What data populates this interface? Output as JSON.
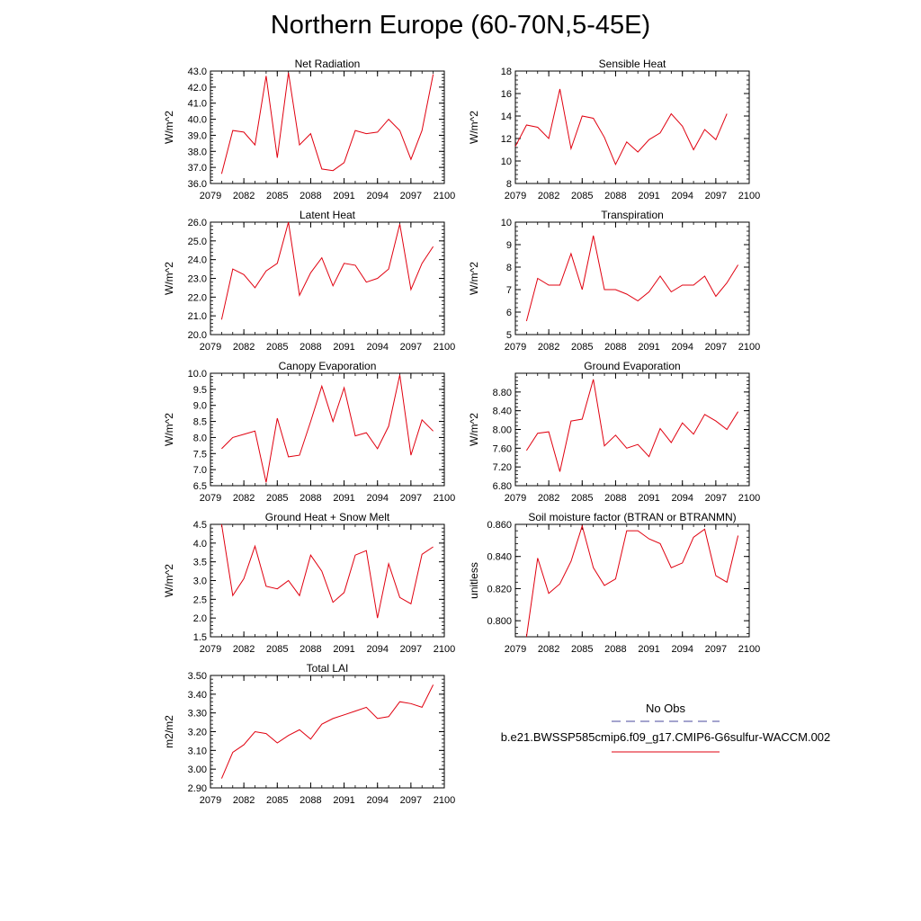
{
  "title": "Northern Europe (60-70N,5-45E)",
  "colors": {
    "series": "#e0000f",
    "obs": "#4a4a9c",
    "axis": "#000000"
  },
  "legend": {
    "obs_label": "No Obs",
    "case_label": "b.e21.BWSSP585cmip6.f09_g17.CMIP6-G6sulfur-WACCM.002"
  },
  "chart_data": [
    {
      "type": "line",
      "title": "Net Radiation",
      "ylabel": "W/m^2",
      "xlim": [
        2079,
        2100
      ],
      "ylim": [
        36.0,
        43.0
      ],
      "yticks": [
        36.0,
        37.0,
        38.0,
        39.0,
        40.0,
        41.0,
        42.0,
        43.0
      ],
      "ytick_labels": [
        "36.0",
        "37.0",
        "38.0",
        "39.0",
        "40.0",
        "41.0",
        "42.0",
        "43.0"
      ],
      "xticks": [
        2079,
        2082,
        2085,
        2088,
        2091,
        2094,
        2097,
        2100
      ],
      "x": [
        2080,
        2081,
        2082,
        2083,
        2084,
        2085,
        2086,
        2087,
        2088,
        2089,
        2090,
        2091,
        2092,
        2093,
        2094,
        2095,
        2096,
        2097,
        2098,
        2099
      ],
      "values": [
        36.6,
        39.3,
        39.2,
        38.4,
        42.7,
        37.6,
        42.9,
        38.4,
        39.1,
        36.9,
        36.8,
        37.3,
        39.3,
        39.1,
        39.2,
        40.0,
        39.3,
        37.5,
        39.3,
        42.8
      ]
    },
    {
      "type": "line",
      "title": "Sensible Heat",
      "ylabel": "W/m^2",
      "xlim": [
        2079,
        2100
      ],
      "ylim": [
        8,
        18
      ],
      "yticks": [
        8,
        10,
        12,
        14,
        16,
        18
      ],
      "ytick_labels": [
        "8",
        "10",
        "12",
        "14",
        "16",
        "18"
      ],
      "xticks": [
        2079,
        2082,
        2085,
        2088,
        2091,
        2094,
        2097,
        2100
      ],
      "x": [
        2079,
        2080,
        2081,
        2082,
        2083,
        2084,
        2085,
        2086,
        2087,
        2088,
        2089,
        2090,
        2091,
        2092,
        2093,
        2094,
        2095,
        2096,
        2097,
        2098
      ],
      "values": [
        11.3,
        13.2,
        13.0,
        12.0,
        16.4,
        11.1,
        14.0,
        13.8,
        12.1,
        9.7,
        11.7,
        10.8,
        11.9,
        12.5,
        14.2,
        13.1,
        11.0,
        12.8,
        11.9,
        14.2
      ]
    },
    {
      "type": "line",
      "title": "Latent Heat",
      "ylabel": "W/m^2",
      "xlim": [
        2079,
        2100
      ],
      "ylim": [
        20.0,
        26.0
      ],
      "yticks": [
        20.0,
        21.0,
        22.0,
        23.0,
        24.0,
        25.0,
        26.0
      ],
      "ytick_labels": [
        "20.0",
        "21.0",
        "22.0",
        "23.0",
        "24.0",
        "25.0",
        "26.0"
      ],
      "xticks": [
        2079,
        2082,
        2085,
        2088,
        2091,
        2094,
        2097,
        2100
      ],
      "x": [
        2080,
        2081,
        2082,
        2083,
        2084,
        2085,
        2086,
        2087,
        2088,
        2089,
        2090,
        2091,
        2092,
        2093,
        2094,
        2095,
        2096,
        2097,
        2098,
        2099
      ],
      "values": [
        20.8,
        23.5,
        23.2,
        22.5,
        23.4,
        23.8,
        26.0,
        22.1,
        23.3,
        24.1,
        22.6,
        23.8,
        23.7,
        22.8,
        23.0,
        23.5,
        25.9,
        22.4,
        23.8,
        24.7
      ]
    },
    {
      "type": "line",
      "title": "Transpiration",
      "ylabel": "W/m^2",
      "xlim": [
        2079,
        2100
      ],
      "ylim": [
        5,
        10
      ],
      "yticks": [
        5,
        6,
        7,
        8,
        9,
        10
      ],
      "ytick_labels": [
        "5",
        "6",
        "7",
        "8",
        "9",
        "10"
      ],
      "xticks": [
        2079,
        2082,
        2085,
        2088,
        2091,
        2094,
        2097,
        2100
      ],
      "x": [
        2080,
        2081,
        2082,
        2083,
        2084,
        2085,
        2086,
        2087,
        2088,
        2089,
        2090,
        2091,
        2092,
        2093,
        2094,
        2095,
        2096,
        2097,
        2098,
        2099
      ],
      "values": [
        5.6,
        7.5,
        7.2,
        7.2,
        8.6,
        7.0,
        9.4,
        7.0,
        7.0,
        6.8,
        6.5,
        6.9,
        7.6,
        6.9,
        7.2,
        7.2,
        7.6,
        6.7,
        7.3,
        8.1
      ]
    },
    {
      "type": "line",
      "title": "Canopy Evaporation",
      "ylabel": "W/m^2",
      "xlim": [
        2079,
        2100
      ],
      "ylim": [
        6.5,
        10.0
      ],
      "yticks": [
        6.5,
        7.0,
        7.5,
        8.0,
        8.5,
        9.0,
        9.5,
        10.0
      ],
      "ytick_labels": [
        "6.5",
        "7.0",
        "7.5",
        "8.0",
        "8.5",
        "9.0",
        "9.5",
        "10.0"
      ],
      "xticks": [
        2079,
        2082,
        2085,
        2088,
        2091,
        2094,
        2097,
        2100
      ],
      "x": [
        2080,
        2081,
        2082,
        2083,
        2084,
        2085,
        2086,
        2087,
        2088,
        2089,
        2090,
        2091,
        2092,
        2093,
        2094,
        2095,
        2096,
        2097,
        2098,
        2099
      ],
      "values": [
        7.65,
        8.0,
        8.1,
        8.2,
        6.6,
        8.6,
        7.4,
        7.45,
        8.5,
        9.6,
        8.5,
        9.55,
        8.05,
        8.15,
        7.65,
        8.35,
        9.95,
        7.45,
        8.55,
        8.2
      ]
    },
    {
      "type": "line",
      "title": "Ground Evaporation",
      "ylabel": "W/m^2",
      "xlim": [
        2079,
        2100
      ],
      "ylim": [
        6.8,
        9.2
      ],
      "yticks": [
        6.8,
        7.2,
        7.6,
        8.0,
        8.4,
        8.8
      ],
      "ytick_labels": [
        "6.80",
        "7.20",
        "7.60",
        "8.00",
        "8.40",
        "8.80"
      ],
      "xticks": [
        2079,
        2082,
        2085,
        2088,
        2091,
        2094,
        2097,
        2100
      ],
      "x": [
        2080,
        2081,
        2082,
        2083,
        2084,
        2085,
        2086,
        2087,
        2088,
        2089,
        2090,
        2091,
        2092,
        2093,
        2094,
        2095,
        2096,
        2097,
        2098,
        2099
      ],
      "values": [
        7.55,
        7.92,
        7.95,
        7.1,
        8.18,
        8.22,
        9.07,
        7.65,
        7.88,
        7.6,
        7.68,
        7.42,
        8.02,
        7.72,
        8.14,
        7.9,
        8.32,
        8.18,
        8.0,
        8.38
      ]
    },
    {
      "type": "line",
      "title": "Ground Heat + Snow Melt",
      "ylabel": "W/m^2",
      "xlim": [
        2079,
        2100
      ],
      "ylim": [
        1.5,
        4.5
      ],
      "yticks": [
        1.5,
        2.0,
        2.5,
        3.0,
        3.5,
        4.0,
        4.5
      ],
      "ytick_labels": [
        "1.5",
        "2.0",
        "2.5",
        "3.0",
        "3.5",
        "4.0",
        "4.5"
      ],
      "xticks": [
        2079,
        2082,
        2085,
        2088,
        2091,
        2094,
        2097,
        2100
      ],
      "x": [
        2080,
        2081,
        2082,
        2083,
        2084,
        2085,
        2086,
        2087,
        2088,
        2089,
        2090,
        2091,
        2092,
        2093,
        2094,
        2095,
        2096,
        2097,
        2098,
        2099
      ],
      "values": [
        4.5,
        2.6,
        3.05,
        3.92,
        2.85,
        2.78,
        3.0,
        2.6,
        3.68,
        3.25,
        2.42,
        2.68,
        3.68,
        3.8,
        2.0,
        3.45,
        2.55,
        2.38,
        3.7,
        3.9
      ]
    },
    {
      "type": "line",
      "title": "Soil moisture factor (BTRAN or BTRANMN)",
      "ylabel": "unitless",
      "xlim": [
        2079,
        2100
      ],
      "ylim": [
        0.79,
        0.86
      ],
      "yticks": [
        0.8,
        0.82,
        0.84,
        0.86
      ],
      "ytick_labels": [
        "0.800",
        "0.820",
        "0.840",
        "0.860"
      ],
      "xticks": [
        2079,
        2082,
        2085,
        2088,
        2091,
        2094,
        2097,
        2100
      ],
      "x": [
        2080,
        2081,
        2082,
        2083,
        2084,
        2085,
        2086,
        2087,
        2088,
        2089,
        2090,
        2091,
        2092,
        2093,
        2094,
        2095,
        2096,
        2097,
        2098,
        2099
      ],
      "values": [
        0.79,
        0.839,
        0.817,
        0.823,
        0.837,
        0.859,
        0.833,
        0.822,
        0.826,
        0.856,
        0.856,
        0.851,
        0.848,
        0.833,
        0.836,
        0.852,
        0.857,
        0.828,
        0.824,
        0.853
      ]
    },
    {
      "type": "line",
      "title": "Total LAI",
      "ylabel": "m2/m2",
      "xlim": [
        2079,
        2100
      ],
      "ylim": [
        2.9,
        3.5
      ],
      "yticks": [
        2.9,
        3.0,
        3.1,
        3.2,
        3.3,
        3.4,
        3.5
      ],
      "ytick_labels": [
        "2.90",
        "3.00",
        "3.10",
        "3.20",
        "3.30",
        "3.40",
        "3.50"
      ],
      "xticks": [
        2079,
        2082,
        2085,
        2088,
        2091,
        2094,
        2097,
        2100
      ],
      "x": [
        2080,
        2081,
        2082,
        2083,
        2084,
        2085,
        2086,
        2087,
        2088,
        2089,
        2090,
        2091,
        2092,
        2093,
        2094,
        2095,
        2096,
        2097,
        2098,
        2099
      ],
      "values": [
        2.95,
        3.09,
        3.13,
        3.2,
        3.19,
        3.14,
        3.18,
        3.21,
        3.16,
        3.24,
        3.27,
        3.29,
        3.31,
        3.33,
        3.27,
        3.28,
        3.36,
        3.35,
        3.33,
        3.45
      ]
    }
  ]
}
